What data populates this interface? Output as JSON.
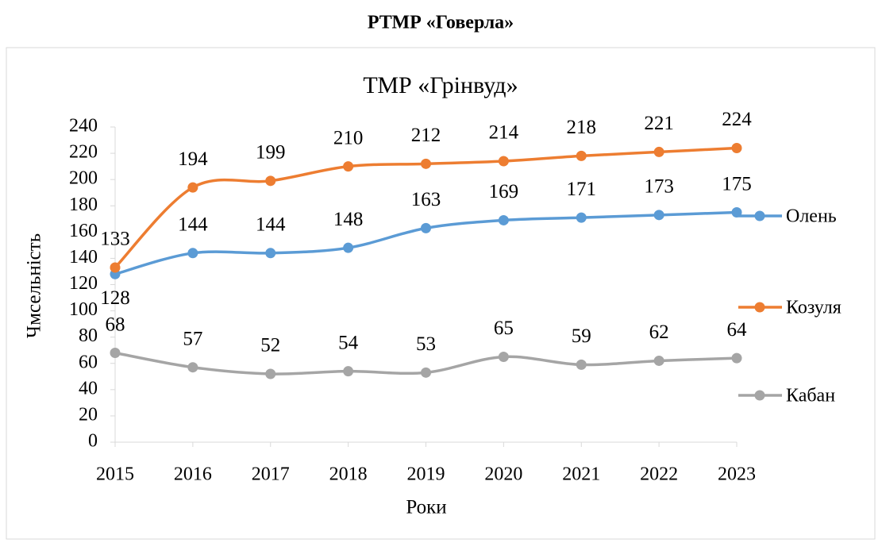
{
  "caption": "РТМР «Говерла»",
  "chart_data": {
    "type": "line",
    "title": "ТМР «Грінвуд»",
    "x_label": "Роки",
    "y_label": "Чмсельність",
    "categories": [
      "2015",
      "2016",
      "2017",
      "2018",
      "2019",
      "2020",
      "2021",
      "2022",
      "2023"
    ],
    "series": [
      {
        "name": "Олень",
        "color": "#5b9bd5",
        "values": [
          128,
          144,
          144,
          148,
          163,
          169,
          171,
          173,
          175
        ]
      },
      {
        "name": "Козуля",
        "color": "#ed7d31",
        "values": [
          133,
          194,
          199,
          210,
          212,
          214,
          218,
          221,
          224
        ]
      },
      {
        "name": "Кабан",
        "color": "#a5a5a5",
        "values": [
          68,
          57,
          52,
          54,
          53,
          65,
          59,
          62,
          64
        ]
      }
    ],
    "ylim": [
      0,
      240
    ],
    "yticks": [
      0,
      20,
      40,
      60,
      80,
      100,
      120,
      140,
      160,
      180,
      200,
      220,
      240
    ],
    "grid": false,
    "legend": "right"
  }
}
